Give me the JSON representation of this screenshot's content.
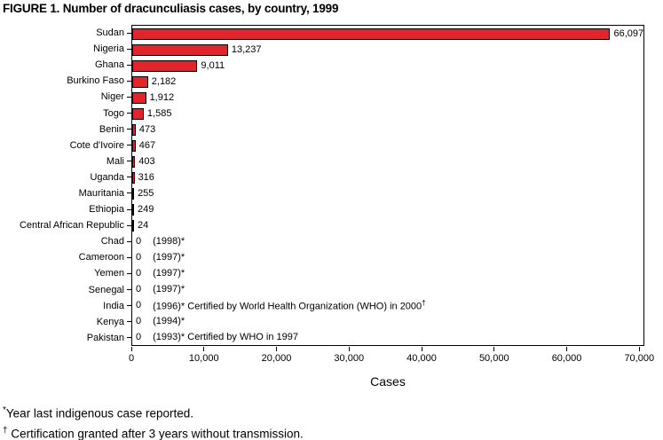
{
  "title": "FIGURE 1. Number of dracunculiasis cases, by country, 1999",
  "chart_data": {
    "type": "bar",
    "orientation": "horizontal",
    "title": "FIGURE 1. Number of dracunculiasis cases, by country, 1999",
    "xlabel": "Cases",
    "xlim": [
      0,
      70000
    ],
    "grid": false,
    "legend": "none",
    "bar_color": "#e3242b",
    "bar_border_color": "#000000",
    "xticks": [
      {
        "value": 0,
        "label": "0"
      },
      {
        "value": 10000,
        "label": "10,000"
      },
      {
        "value": 20000,
        "label": "20,000"
      },
      {
        "value": 30000,
        "label": "30,000"
      },
      {
        "value": 40000,
        "label": "40,000"
      },
      {
        "value": 50000,
        "label": "50,000"
      },
      {
        "value": 60000,
        "label": "60,000"
      },
      {
        "value": 70000,
        "label": "70,000"
      }
    ],
    "rows": [
      {
        "country": "Sudan",
        "value": 66097,
        "label": "66,097"
      },
      {
        "country": "Nigeria",
        "value": 13237,
        "label": "13,237"
      },
      {
        "country": "Ghana",
        "value": 9011,
        "label": "9,011"
      },
      {
        "country": "Burkino Faso",
        "value": 2182,
        "label": "2,182"
      },
      {
        "country": "Niger",
        "value": 1912,
        "label": "1,912"
      },
      {
        "country": "Togo",
        "value": 1585,
        "label": "1,585"
      },
      {
        "country": "Benin",
        "value": 473,
        "label": "473"
      },
      {
        "country": "Cote d'Ivoire",
        "value": 467,
        "label": "467"
      },
      {
        "country": "Mali",
        "value": 403,
        "label": "403"
      },
      {
        "country": "Uganda",
        "value": 316,
        "label": "316"
      },
      {
        "country": "Mauritania",
        "value": 255,
        "label": "255"
      },
      {
        "country": "Ethiopia",
        "value": 249,
        "label": "249"
      },
      {
        "country": "Central African Republic",
        "value": 24,
        "label": "24"
      },
      {
        "country": "Chad",
        "value": 0,
        "label": "0",
        "note": "(1998)*"
      },
      {
        "country": "Cameroon",
        "value": 0,
        "label": "0",
        "note": "(1997)*"
      },
      {
        "country": "Yemen",
        "value": 0,
        "label": "0",
        "note": "(1997)*"
      },
      {
        "country": "Senegal",
        "value": 0,
        "label": "0",
        "note": "(1997)*"
      },
      {
        "country": "India",
        "value": 0,
        "label": "0",
        "note": "(1996)* Certified by World Health Organization (WHO) in 2000",
        "note_sup": "†"
      },
      {
        "country": "Kenya",
        "value": 0,
        "label": "0",
        "note": "(1994)*"
      },
      {
        "country": "Pakistan",
        "value": 0,
        "label": "0",
        "note": "(1993)* Certified by WHO in 1997"
      }
    ]
  },
  "footnotes": [
    {
      "marker": "*",
      "text": "Year last indigenous case reported."
    },
    {
      "marker": "†",
      "text": "Certification granted after 3 years without transmission."
    }
  ]
}
